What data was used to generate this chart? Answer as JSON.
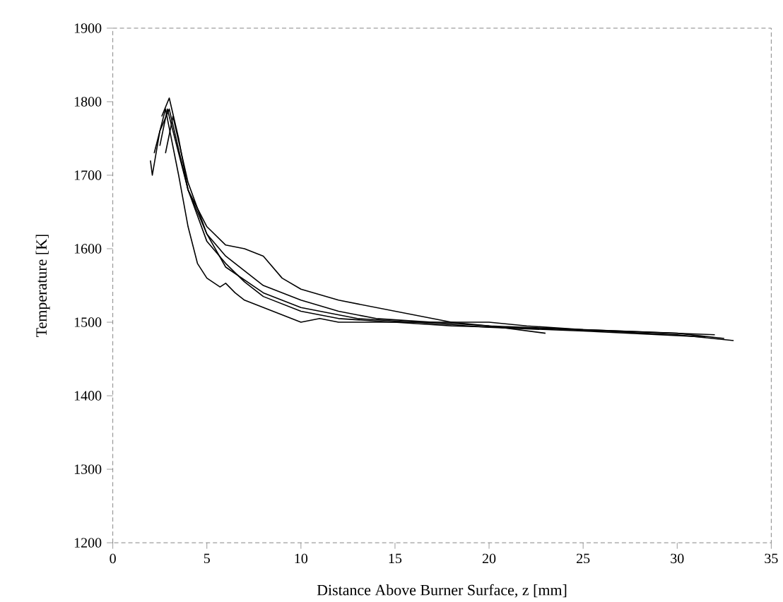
{
  "chart_data": {
    "type": "line",
    "xlabel": "Distance Above Burner Surface, z [mm]",
    "ylabel": "Temperature [K]",
    "xlim": [
      0,
      35
    ],
    "xticks": [
      0,
      5,
      10,
      15,
      20,
      25,
      30,
      35
    ],
    "ylim": [
      1200,
      1900
    ],
    "yticks": [
      1200,
      1300,
      1400,
      1500,
      1600,
      1700,
      1800,
      1900
    ],
    "grid": false,
    "marker": "none",
    "line_style": "solid",
    "series": [
      {
        "color": "#000000",
        "x": [
          2.5,
          2.9,
          4,
          5,
          6,
          7,
          8,
          9,
          10,
          12,
          14,
          16,
          18,
          20,
          22,
          25,
          28,
          32
        ],
        "values": [
          1740,
          1790,
          1680,
          1630,
          1605,
          1600,
          1590,
          1560,
          1545,
          1530,
          1520,
          1510,
          1500,
          1500,
          1495,
          1490,
          1487,
          1483
        ]
      },
      {
        "color": "#000000",
        "x": [
          2.2,
          2.8,
          3.5,
          4,
          4.5,
          5,
          5.7,
          6,
          6.5,
          7,
          8,
          9,
          10,
          11,
          12,
          15,
          18,
          20,
          23
        ],
        "values": [
          1730,
          1790,
          1700,
          1630,
          1580,
          1560,
          1548,
          1553,
          1540,
          1530,
          1520,
          1510,
          1500,
          1505,
          1500,
          1500,
          1500,
          1495,
          1485
        ]
      },
      {
        "color": "#000000",
        "x": [
          2.0,
          2.1,
          2.5,
          3,
          4,
          5,
          6,
          7,
          8,
          10,
          12,
          15,
          18,
          22,
          26,
          30,
          33
        ],
        "values": [
          1720,
          1700,
          1760,
          1790,
          1680,
          1610,
          1580,
          1555,
          1535,
          1515,
          1505,
          1500,
          1495,
          1492,
          1488,
          1483,
          1475
        ]
      },
      {
        "color": "#000000",
        "x": [
          2.6,
          3,
          3.5,
          4,
          5,
          6,
          7,
          8,
          10,
          12,
          14,
          17,
          20,
          25,
          30,
          32.5
        ],
        "values": [
          1780,
          1805,
          1750,
          1680,
          1620,
          1590,
          1570,
          1550,
          1530,
          1515,
          1505,
          1500,
          1495,
          1490,
          1485,
          1478
        ]
      },
      {
        "color": "#000000",
        "x": [
          2.8,
          3.2,
          4,
          5,
          6,
          8,
          10,
          13,
          16,
          20,
          25,
          31.5
        ],
        "values": [
          1730,
          1780,
          1690,
          1620,
          1575,
          1540,
          1520,
          1505,
          1500,
          1493,
          1488,
          1480
        ]
      }
    ]
  }
}
